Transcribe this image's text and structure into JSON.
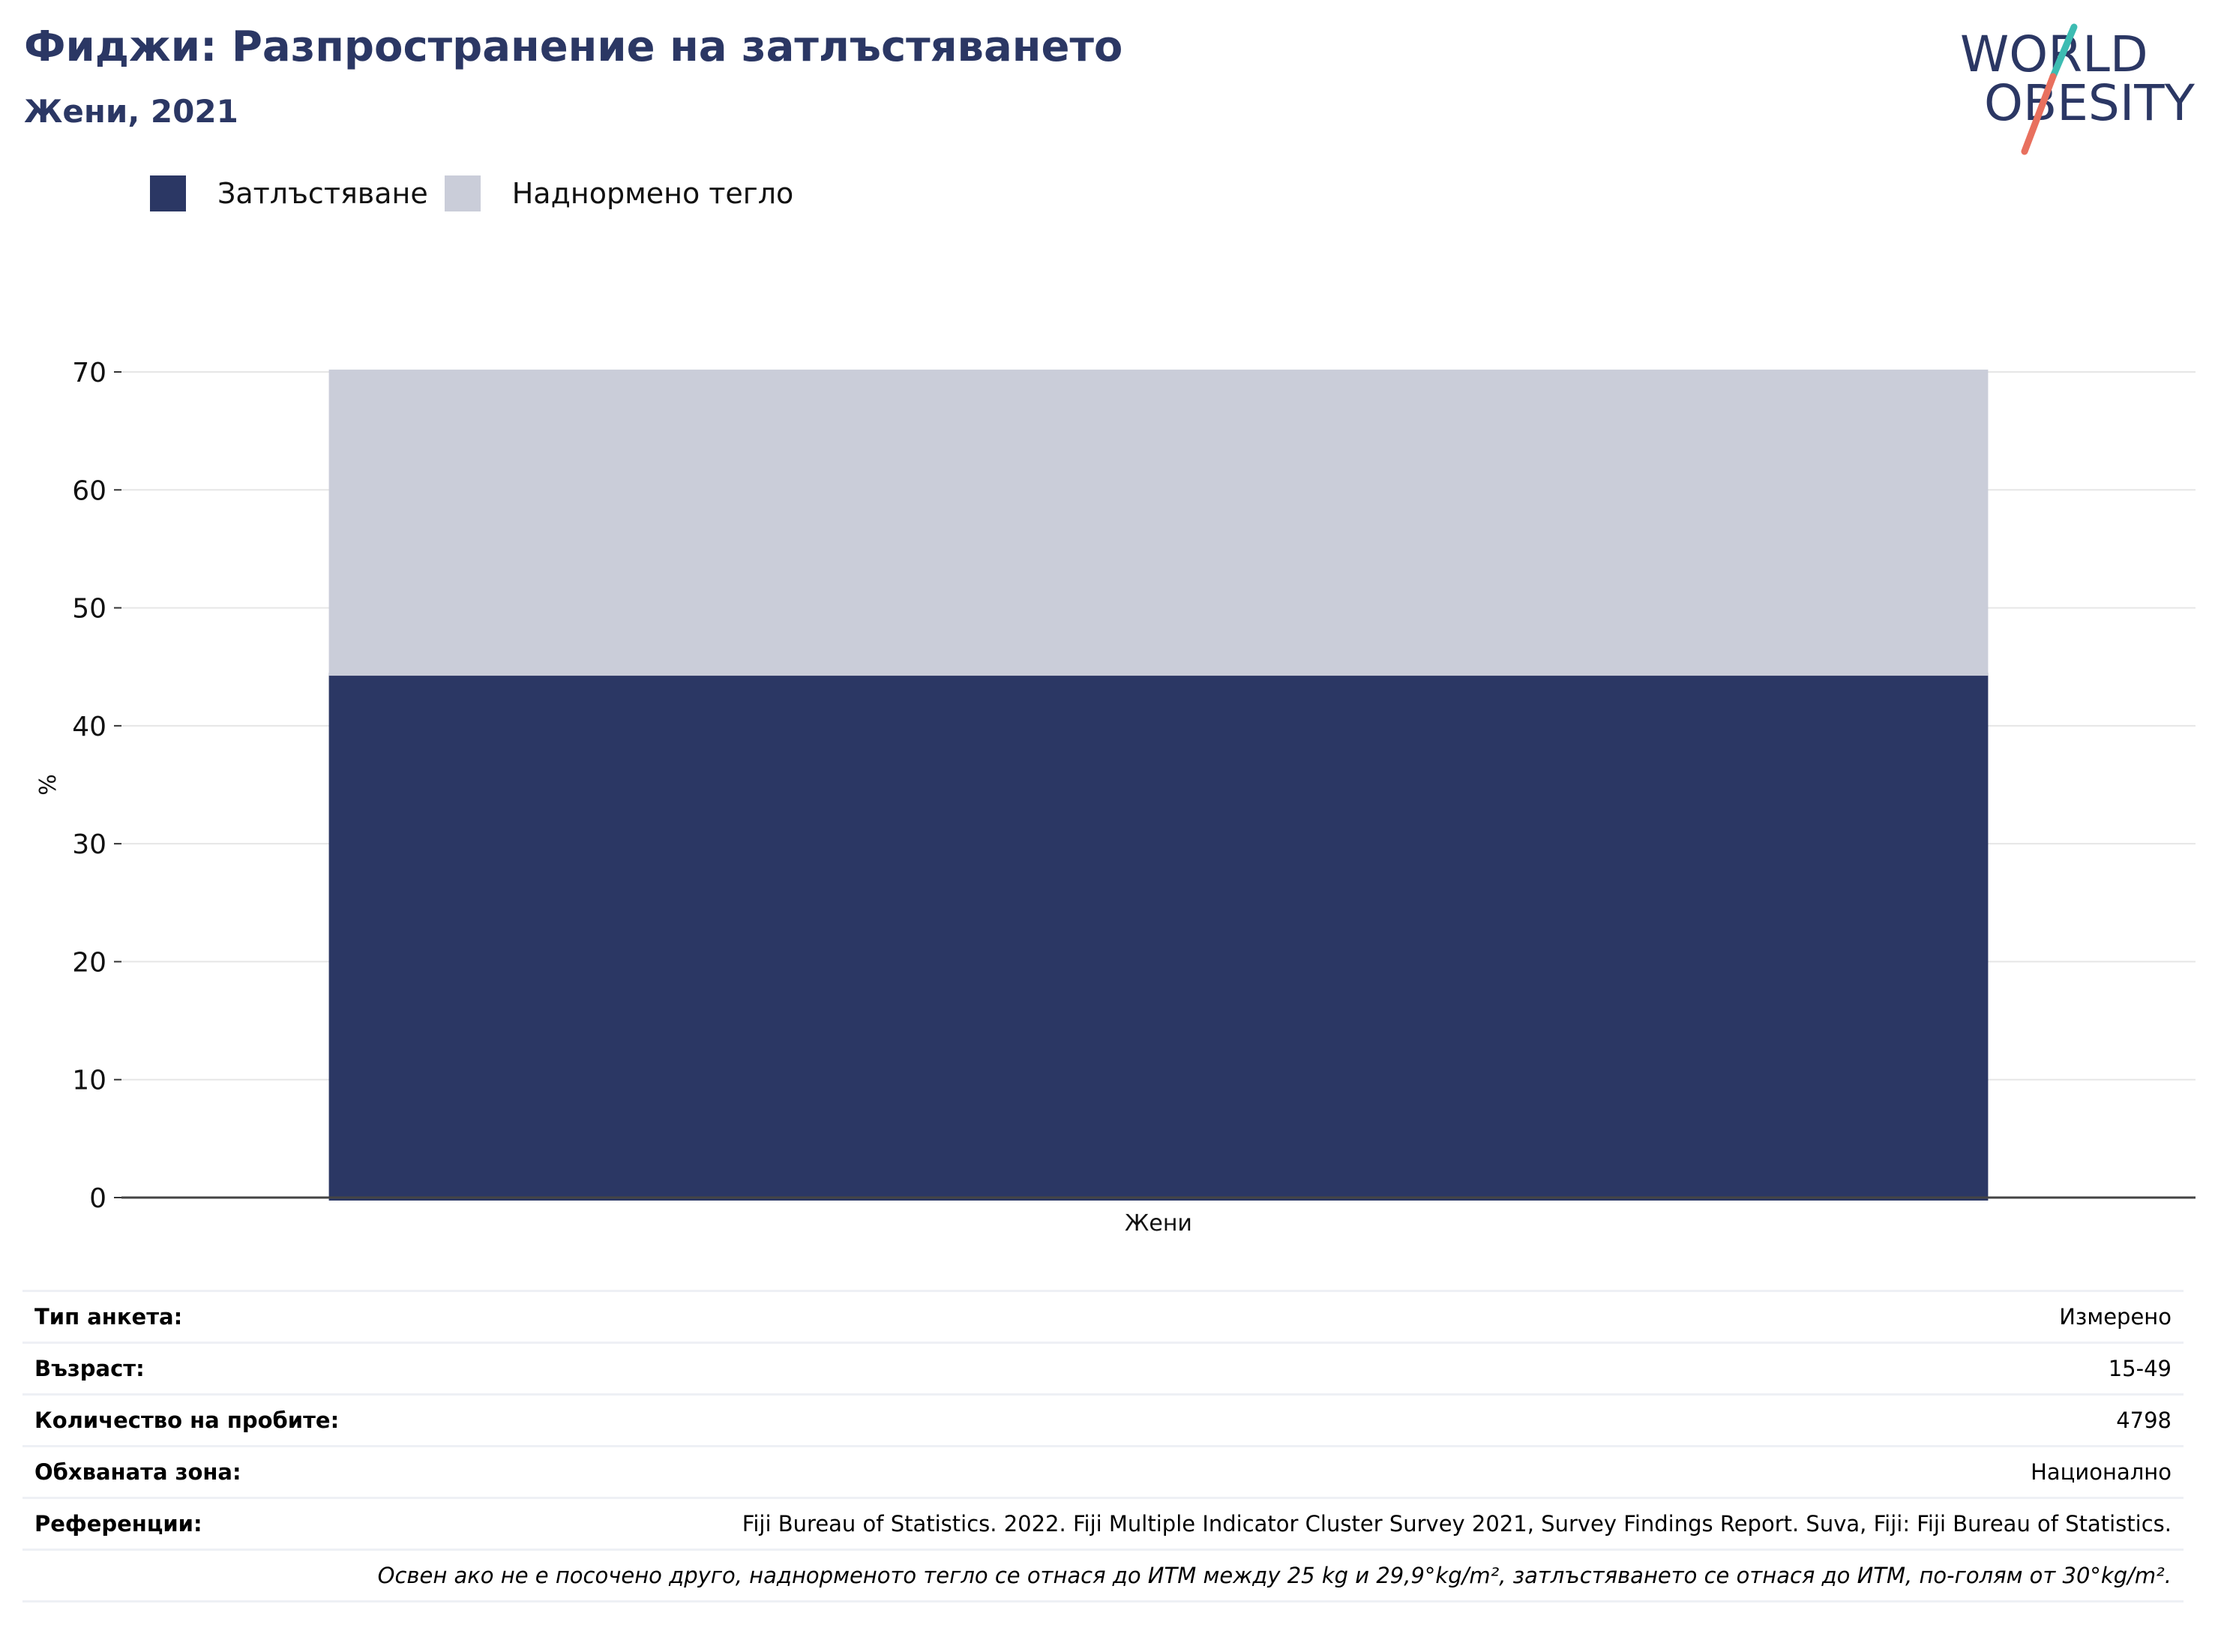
{
  "header": {
    "title": "Фиджи: Разпространение на затлъстяването",
    "subtitle": "Жени, 2021"
  },
  "logo": {
    "line1": "WORLD",
    "line2": "OBESITY"
  },
  "colors": {
    "obesity": "#2b3764",
    "overweight": "#cacdd9",
    "title": "#2b3764",
    "logo_teal": "#3dbcb2",
    "logo_coral": "#e8705e"
  },
  "legend": [
    {
      "label": "Затлъстяване",
      "color": "#2b3764"
    },
    {
      "label": "Наднормено тегло",
      "color": "#cacdd9"
    }
  ],
  "chart_data": {
    "type": "bar",
    "stacked": true,
    "categories": [
      "Жени"
    ],
    "series": [
      {
        "name": "Затлъстяване",
        "values": [
          44.5
        ]
      },
      {
        "name": "Наднормено тегло",
        "values": [
          25.7
        ]
      }
    ],
    "xlabel": "",
    "ylabel": "%",
    "ylim": [
      0,
      70
    ],
    "yticks": [
      0,
      10,
      20,
      30,
      40,
      50,
      60,
      70
    ],
    "grid": true,
    "legend_position": "top-left"
  },
  "info": [
    {
      "key": "Тип анкета:",
      "value": "Измерено"
    },
    {
      "key": "Възраст:",
      "value": "15-49"
    },
    {
      "key": "Количество на пробите:",
      "value": "4798"
    },
    {
      "key": "Обхваната зона:",
      "value": "Национално"
    },
    {
      "key": "Референции:",
      "value": "Fiji Bureau of Statistics. 2022. Fiji Multiple Indicator Cluster Survey 2021, Survey Findings Report. Suva, Fiji: Fiji Bureau of Statistics."
    }
  ],
  "note": "Освен ако не е посочено друго, наднорменото тегло се отнася до ИТМ между 25 kg и 29,9°kg/m², затлъстяването се отнася до ИТМ, по-голям от 30°kg/m²."
}
